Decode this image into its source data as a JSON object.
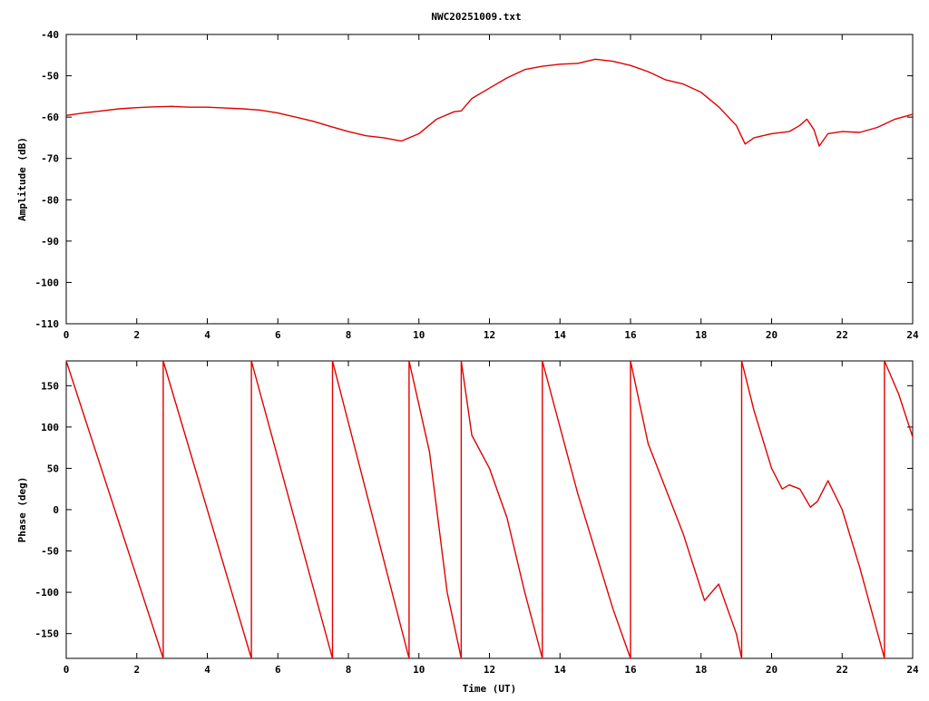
{
  "title": "NWC20251009.txt",
  "chart_data": [
    {
      "type": "line",
      "panel": "amplitude",
      "title": "NWC20251009.txt",
      "xlabel": "",
      "ylabel": "Amplitude (dB)",
      "xlim": [
        0,
        24
      ],
      "ylim": [
        -110,
        -40
      ],
      "xticks": [
        "0",
        "2",
        "4",
        "6",
        "8",
        "10",
        "12",
        "14",
        "16",
        "18",
        "20",
        "22",
        "24"
      ],
      "yticks": [
        "-40",
        "-50",
        "-60",
        "-70",
        "-80",
        "-90",
        "-100",
        "-110"
      ],
      "grid": false,
      "color": "#e00000",
      "series": [
        {
          "x": [
            0,
            0.5,
            1,
            1.5,
            2,
            2.5,
            3,
            3.5,
            4,
            4.5,
            5,
            5.5,
            6,
            6.5,
            7,
            7.5,
            8,
            8.5,
            9,
            9.5,
            10,
            10.5,
            11,
            11.2,
            11.5,
            12,
            12.5,
            13,
            13.5,
            14,
            14.5,
            15,
            15.5,
            16,
            16.5,
            17,
            17.5,
            18,
            18.5,
            19,
            19.25,
            19.5,
            20,
            20.5,
            20.8,
            21,
            21.2,
            21.35,
            21.6,
            22,
            22.5,
            23,
            23.5,
            24
          ],
          "y": [
            -59.6,
            -59,
            -58.5,
            -58,
            -57.7,
            -57.5,
            -57.4,
            -57.6,
            -57.6,
            -57.8,
            -58,
            -58.3,
            -59,
            -60,
            -61,
            -62.3,
            -63.5,
            -64.5,
            -65,
            -65.8,
            -64,
            -60.5,
            -58.7,
            -58.5,
            -55.5,
            -53,
            -50.5,
            -48.5,
            -47.7,
            -47.2,
            -47,
            -46,
            -46.5,
            -47.5,
            -49,
            -51,
            -52,
            -54,
            -57.5,
            -62,
            -66.5,
            -65,
            -64,
            -63.5,
            -62,
            -60.5,
            -63,
            -67,
            -64,
            -63.5,
            -63.7,
            -62.5,
            -60.5,
            -59.3
          ]
        }
      ]
    },
    {
      "type": "line",
      "panel": "phase",
      "title": "",
      "xlabel": "Time (UT)",
      "ylabel": "Phase (deg)",
      "xlim": [
        0,
        24
      ],
      "ylim": [
        -180,
        180
      ],
      "xticks": [
        "0",
        "2",
        "4",
        "6",
        "8",
        "10",
        "12",
        "14",
        "16",
        "18",
        "20",
        "22",
        "24"
      ],
      "yticks": [
        "150",
        "100",
        "50",
        "0",
        "-50",
        "-100",
        "-150"
      ],
      "grid": false,
      "color": "#e00000",
      "series": [
        {
          "x": [
            0,
            2.75,
            2.75,
            5.25,
            5.25,
            7.55,
            7.55,
            9.72,
            9.72,
            10.3,
            10.8,
            11.2,
            11.2,
            11.5,
            12,
            12.5,
            13,
            13.5,
            13.5,
            14.5,
            15.5,
            16,
            16,
            16.5,
            17.5,
            18.1,
            18.5,
            19.0,
            19.15,
            19.15,
            19.5,
            20,
            20.3,
            20.5,
            20.8,
            21.1,
            21.3,
            21.6,
            22,
            22.5,
            23.2,
            23.2,
            23.6,
            24
          ],
          "y": [
            180,
            -180,
            180,
            -180,
            180,
            -180,
            180,
            -180,
            180,
            70,
            -100,
            -180,
            180,
            90,
            50,
            -10,
            -100,
            -180,
            180,
            20,
            -120,
            -180,
            180,
            80,
            -30,
            -110,
            -90,
            -150,
            -180,
            180,
            120,
            50,
            25,
            30,
            25,
            3,
            10,
            35,
            0,
            -70,
            -180,
            180,
            140,
            88
          ]
        }
      ]
    }
  ]
}
